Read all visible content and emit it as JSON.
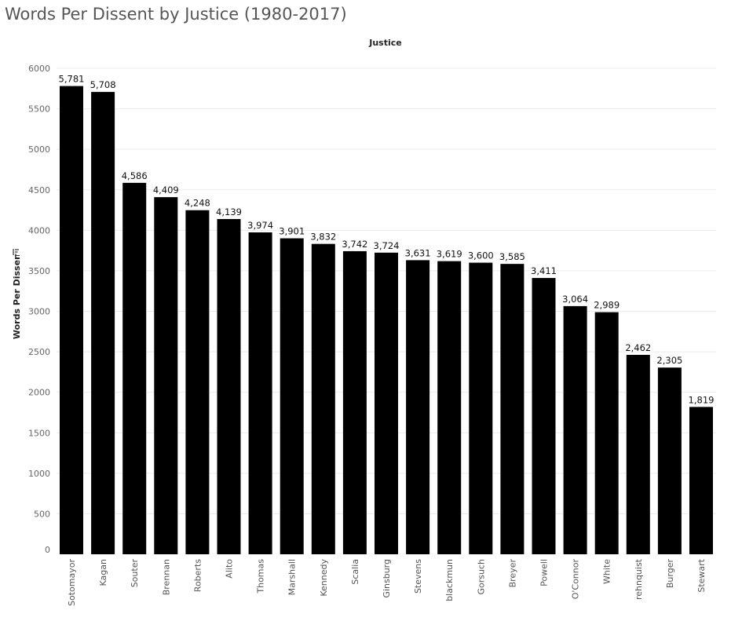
{
  "chart_data": {
    "type": "bar",
    "title": "Words Per Dissent by Justice (1980-2017)",
    "column_header": "Justice",
    "xlabel": "",
    "ylabel": "Words Per Dissent",
    "sort_icon": "sort-descending-icon",
    "ylim": [
      0,
      6000
    ],
    "yticks": [
      0,
      500,
      1000,
      1500,
      2000,
      2500,
      3000,
      3500,
      4000,
      4500,
      5000,
      5500,
      6000
    ],
    "grid": true,
    "bar_color": "#000000",
    "categories": [
      "Sotomayor",
      "Kagan",
      "Souter",
      "Brennan",
      "Roberts",
      "Alito",
      "Thomas",
      "Marshall",
      "Kennedy",
      "Scalia",
      "Ginsburg",
      "Stevens",
      "blackmun",
      "Gorsuch",
      "Breyer",
      "Powell",
      "O'Connor",
      "White",
      "rehnquist",
      "Burger",
      "Stewart"
    ],
    "values": [
      5781,
      5708,
      4586,
      4409,
      4248,
      4139,
      3974,
      3901,
      3832,
      3742,
      3724,
      3631,
      3619,
      3600,
      3585,
      3411,
      3064,
      2989,
      2462,
      2305,
      1819
    ],
    "value_labels": [
      "5,781",
      "5,708",
      "4,586",
      "4,409",
      "4,248",
      "4,139",
      "3,974",
      "3,901",
      "3,832",
      "3,742",
      "3,724",
      "3,631",
      "3,619",
      "3,600",
      "3,585",
      "3,411",
      "3,064",
      "2,989",
      "2,462",
      "2,305",
      "1,819"
    ]
  }
}
